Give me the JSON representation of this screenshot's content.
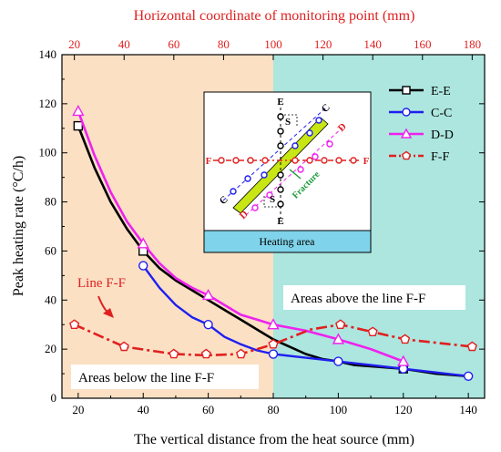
{
  "chart_data": {
    "type": "line",
    "xlabel": "The vertical distance from the heat source (mm)",
    "ylabel": "Peak heating rate (°C/h)",
    "x2label": "Horizontal coordinate of monitoring point (mm)",
    "xlim": [
      15,
      145
    ],
    "ylim": [
      0,
      140
    ],
    "x2lim": [
      15,
      185
    ],
    "xticks": [
      20,
      40,
      60,
      80,
      100,
      120,
      140
    ],
    "yticks": [
      0,
      20,
      40,
      60,
      80,
      100,
      120,
      140
    ],
    "x2ticks": [
      20,
      40,
      60,
      80,
      100,
      120,
      140,
      160,
      180
    ],
    "regions": [
      {
        "name": "below",
        "x_range": [
          15,
          80
        ],
        "color": "#fbe0c4",
        "label": "Areas below the line F-F"
      },
      {
        "name": "above",
        "x_range": [
          80,
          145
        ],
        "color": "#ace6df",
        "label": "Areas above the line F-F"
      }
    ],
    "annotation": {
      "text": "Line F-F",
      "arrow_to": [
        23,
        28
      ]
    },
    "legend_position": "top-right",
    "series": [
      {
        "name": "E-E",
        "color": "#000000",
        "marker": "square",
        "dash": "solid",
        "x": [
          20,
          40,
          120
        ],
        "y": [
          111,
          60,
          12
        ],
        "curve_x": [
          20,
          25,
          30,
          35,
          40,
          45,
          50,
          55,
          60,
          65,
          70,
          75,
          80,
          85,
          90,
          95,
          100,
          105,
          110,
          115,
          120,
          125,
          130,
          135,
          140
        ],
        "curve_y": [
          111,
          94,
          80,
          69,
          60,
          53,
          48,
          44,
          40,
          36,
          32,
          28,
          24,
          21,
          18,
          16,
          15,
          13.5,
          13,
          12.5,
          12,
          11,
          10,
          9.5,
          9
        ]
      },
      {
        "name": "C-C",
        "color": "#1f1ff0",
        "marker": "circle",
        "dash": "solid",
        "x": [
          40,
          60,
          80,
          100,
          120,
          140
        ],
        "y": [
          54,
          30,
          18,
          15,
          12,
          9
        ],
        "curve_x": [
          40,
          45,
          50,
          55,
          60,
          65,
          70,
          75,
          80,
          90,
          100,
          110,
          120,
          130,
          140
        ],
        "curve_y": [
          54,
          45,
          38,
          33,
          30,
          25,
          22,
          19.5,
          18,
          16.5,
          15,
          13.5,
          12,
          10.5,
          9
        ]
      },
      {
        "name": "D-D",
        "color": "#ee22ee",
        "marker": "triangle",
        "dash": "solid",
        "x": [
          20,
          40,
          60,
          80,
          100,
          120
        ],
        "y": [
          117,
          63,
          42,
          30,
          24,
          15
        ],
        "curve_x": [
          20,
          25,
          30,
          35,
          40,
          45,
          50,
          55,
          60,
          65,
          70,
          75,
          80,
          90,
          100,
          110,
          120
        ],
        "curve_y": [
          117,
          99,
          84,
          72,
          63,
          55,
          49,
          45,
          42,
          38,
          34,
          32,
          30,
          27.5,
          24,
          20,
          15
        ]
      },
      {
        "name": "F-F",
        "color": "#e02020",
        "marker": "pentagon",
        "dash": "dashdot",
        "axis": "top",
        "x": [
          20,
          40,
          60,
          73,
          87,
          100,
          127,
          140,
          153,
          180
        ],
        "y": [
          30,
          21,
          18,
          18,
          18,
          22,
          30,
          27,
          24,
          21
        ],
        "curve_x": [
          20,
          40,
          60,
          73,
          87,
          100,
          115,
          127,
          140,
          153,
          180
        ],
        "curve_y": [
          30,
          21,
          18,
          17.5,
          18,
          22,
          28,
          30,
          27,
          24,
          21
        ]
      }
    ],
    "inset": {
      "footer": "Heating area",
      "labels": {
        "e_top": "E",
        "e_bottom": "E",
        "f_left": "F",
        "f_right": "F",
        "c_left": "C",
        "c_right": "C",
        "d_left": "D",
        "d_right": "D",
        "s_top": "S",
        "s_bottom": "S",
        "fracture": "Fracture"
      }
    }
  }
}
